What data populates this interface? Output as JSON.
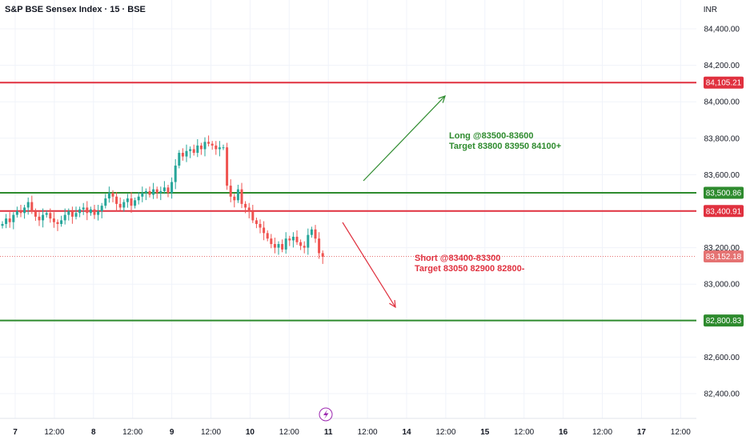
{
  "header": {
    "symbol": "S&P BSE Sensex Index · 15 · BSE",
    "currency": "INR"
  },
  "colors": {
    "up": "#26a69a",
    "down": "#ef5350",
    "support": "#2e8b2e",
    "resistance": "#e0313f",
    "long_text": "#2e8b2e",
    "short_text": "#e0313f",
    "last_price_line": "#e57373"
  },
  "chart_data": {
    "type": "line",
    "title": "",
    "xlabel": "",
    "ylabel": "",
    "ylim": [
      82300,
      84500
    ],
    "y_ticks": [
      "84,400.00",
      "84,200.00",
      "84,000.00",
      "83,800.00",
      "83,600.00",
      "83,400.00",
      "83,200.00",
      "83,000.00",
      "82,800.00",
      "82,600.00",
      "82,400.00"
    ],
    "x_ticks": [
      "7",
      "12:00",
      "8",
      "12:00",
      "9",
      "12:00",
      "10",
      "12:00",
      "11",
      "12:00",
      "14",
      "12:00",
      "15",
      "12:00",
      "16",
      "12:00",
      "17",
      "12:00"
    ],
    "series": [
      {
        "values": [
          83330,
          83360,
          83340,
          83380,
          83400,
          83390,
          83420,
          83450,
          83400,
          83370,
          83350,
          83380,
          83390,
          83360,
          83340,
          83330,
          83350,
          83380,
          83400,
          83370,
          83390,
          83410,
          83420,
          83390,
          83410,
          83380,
          83400,
          83430,
          83470,
          83500,
          83480,
          83440,
          83420,
          83450,
          83470,
          83430,
          83460,
          83480,
          83500,
          83510,
          83490,
          83520,
          83500,
          83510,
          83530,
          83500,
          83560,
          83650,
          83720,
          83700,
          83730,
          83740,
          83720,
          83760,
          83740,
          83780,
          83770,
          83760,
          83740,
          83750,
          83750,
          83540,
          83480,
          83460,
          83520,
          83440,
          83420,
          83400,
          83350,
          83330,
          83310,
          83280,
          83250,
          83220,
          83200,
          83220,
          83190,
          83250,
          83240,
          83260,
          83230,
          83210,
          83200,
          83270,
          83300,
          83250,
          83170,
          83150
        ]
      }
    ],
    "levels": [
      {
        "value": 84105.21,
        "label": "84,105.21",
        "kind": "resistance"
      },
      {
        "value": 83500.86,
        "label": "83,500.86",
        "kind": "support"
      },
      {
        "value": 83400.91,
        "label": "83,400.91",
        "kind": "resistance"
      },
      {
        "value": 83152.18,
        "label": "83,152.18",
        "kind": "last"
      },
      {
        "value": 82800.83,
        "label": "82,800.83",
        "kind": "support"
      }
    ],
    "annotations": [
      {
        "kind": "long",
        "lines": [
          "Long @83500-83600",
          "Target 83800 83950 84100+"
        ]
      },
      {
        "kind": "short",
        "lines": [
          "Short @83400-83300",
          "Target 83050 82900 82800-"
        ]
      }
    ],
    "grid": true,
    "legend": "none"
  }
}
